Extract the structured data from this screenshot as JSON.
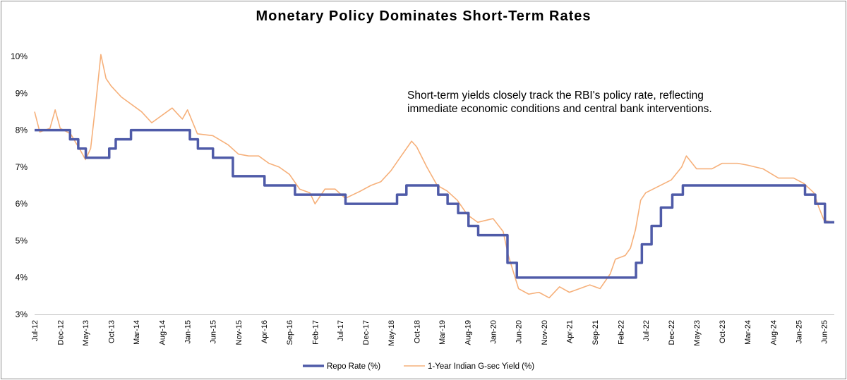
{
  "chart_data": {
    "type": "line",
    "title": "Monetary Policy Dominates Short-Term Rates",
    "xlabel": "",
    "ylabel": "",
    "annotation": "Short-term yields closely track the RBI's policy rate, reflecting immediate economic conditions and central bank interventions.",
    "ylim": [
      3,
      10
    ],
    "y_ticks": [
      "3%",
      "4%",
      "5%",
      "6%",
      "7%",
      "8%",
      "9%",
      "10%"
    ],
    "x_range": [
      "2012-07",
      "2025-08"
    ],
    "x_ticks": [
      "Jul-12",
      "Dec-12",
      "May-13",
      "Oct-13",
      "Mar-14",
      "Aug-14",
      "Jan-15",
      "Jun-15",
      "Nov-15",
      "Apr-16",
      "Sep-16",
      "Feb-17",
      "Jul-17",
      "Dec-17",
      "May-18",
      "Oct-18",
      "Mar-19",
      "Aug-19",
      "Jan-20",
      "Jun-20",
      "Nov-20",
      "Apr-21",
      "Sep-21",
      "Feb-22",
      "Jul-22",
      "Dec-22",
      "May-23",
      "Oct-23",
      "Mar-24",
      "Aug-24",
      "Jan-25",
      "Jun-25"
    ],
    "grid": false,
    "legend_position": "bottom",
    "series": [
      {
        "name": "Repo Rate (%)",
        "color": "#4f5ba8",
        "step": true,
        "points": [
          [
            "2012-07-01",
            8.0
          ],
          [
            "2013-01-29",
            7.75
          ],
          [
            "2013-03-19",
            7.5
          ],
          [
            "2013-05-03",
            7.25
          ],
          [
            "2013-09-20",
            7.5
          ],
          [
            "2013-10-29",
            7.75
          ],
          [
            "2014-01-28",
            8.0
          ],
          [
            "2015-01-15",
            7.75
          ],
          [
            "2015-03-04",
            7.5
          ],
          [
            "2015-06-02",
            7.25
          ],
          [
            "2015-09-29",
            6.75
          ],
          [
            "2016-04-05",
            6.5
          ],
          [
            "2016-10-04",
            6.25
          ],
          [
            "2017-08-02",
            6.0
          ],
          [
            "2018-06-06",
            6.25
          ],
          [
            "2018-08-01",
            6.5
          ],
          [
            "2019-02-07",
            6.25
          ],
          [
            "2019-04-04",
            6.0
          ],
          [
            "2019-06-06",
            5.75
          ],
          [
            "2019-08-07",
            5.4
          ],
          [
            "2019-10-04",
            5.15
          ],
          [
            "2020-03-27",
            4.4
          ],
          [
            "2020-05-22",
            4.0
          ],
          [
            "2022-05-04",
            4.4
          ],
          [
            "2022-06-08",
            4.9
          ],
          [
            "2022-08-05",
            5.4
          ],
          [
            "2022-09-30",
            5.9
          ],
          [
            "2022-12-07",
            6.25
          ],
          [
            "2023-02-08",
            6.5
          ],
          [
            "2025-02-07",
            6.25
          ],
          [
            "2025-04-09",
            6.0
          ],
          [
            "2025-06-06",
            5.5
          ],
          [
            "2025-08-01",
            5.5
          ]
        ]
      },
      {
        "name": "1-Year Indian G-sec Yield (%)",
        "color": "#f6b07a",
        "points": [
          [
            "2012-07-01",
            8.5
          ],
          [
            "2012-08-01",
            7.95
          ],
          [
            "2012-10-01",
            8.05
          ],
          [
            "2012-11-01",
            8.55
          ],
          [
            "2012-12-01",
            8.05
          ],
          [
            "2013-02-01",
            7.9
          ],
          [
            "2013-04-01",
            7.45
          ],
          [
            "2013-05-01",
            7.2
          ],
          [
            "2013-06-01",
            7.5
          ],
          [
            "2013-07-01",
            8.7
          ],
          [
            "2013-08-01",
            10.05
          ],
          [
            "2013-09-01",
            9.4
          ],
          [
            "2013-10-01",
            9.2
          ],
          [
            "2013-12-01",
            8.9
          ],
          [
            "2014-04-01",
            8.5
          ],
          [
            "2014-06-01",
            8.2
          ],
          [
            "2014-10-01",
            8.6
          ],
          [
            "2014-12-01",
            8.3
          ],
          [
            "2015-01-01",
            8.55
          ],
          [
            "2015-03-01",
            7.9
          ],
          [
            "2015-06-01",
            7.85
          ],
          [
            "2015-09-01",
            7.6
          ],
          [
            "2015-11-01",
            7.35
          ],
          [
            "2016-01-01",
            7.3
          ],
          [
            "2016-03-01",
            7.3
          ],
          [
            "2016-05-01",
            7.1
          ],
          [
            "2016-07-01",
            7.0
          ],
          [
            "2016-09-01",
            6.8
          ],
          [
            "2016-11-01",
            6.4
          ],
          [
            "2017-01-01",
            6.3
          ],
          [
            "2017-02-01",
            6.0
          ],
          [
            "2017-04-01",
            6.4
          ],
          [
            "2017-06-01",
            6.4
          ],
          [
            "2017-08-01",
            6.15
          ],
          [
            "2017-11-01",
            6.35
          ],
          [
            "2018-01-01",
            6.5
          ],
          [
            "2018-03-01",
            6.6
          ],
          [
            "2018-05-01",
            6.9
          ],
          [
            "2018-07-01",
            7.3
          ],
          [
            "2018-09-01",
            7.7
          ],
          [
            "2018-10-01",
            7.55
          ],
          [
            "2018-12-01",
            7.0
          ],
          [
            "2019-02-01",
            6.5
          ],
          [
            "2019-04-01",
            6.35
          ],
          [
            "2019-06-01",
            6.1
          ],
          [
            "2019-08-01",
            5.7
          ],
          [
            "2019-10-01",
            5.5
          ],
          [
            "2020-01-01",
            5.6
          ],
          [
            "2020-03-01",
            5.25
          ],
          [
            "2020-04-01",
            4.6
          ],
          [
            "2020-06-01",
            3.7
          ],
          [
            "2020-08-01",
            3.55
          ],
          [
            "2020-10-01",
            3.6
          ],
          [
            "2020-12-01",
            3.45
          ],
          [
            "2021-02-01",
            3.75
          ],
          [
            "2021-04-01",
            3.6
          ],
          [
            "2021-06-01",
            3.7
          ],
          [
            "2021-08-01",
            3.8
          ],
          [
            "2021-10-01",
            3.7
          ],
          [
            "2021-12-01",
            4.1
          ],
          [
            "2022-01-01",
            4.5
          ],
          [
            "2022-03-01",
            4.6
          ],
          [
            "2022-04-01",
            4.8
          ],
          [
            "2022-05-01",
            5.3
          ],
          [
            "2022-06-01",
            6.1
          ],
          [
            "2022-07-01",
            6.3
          ],
          [
            "2022-12-01",
            6.65
          ],
          [
            "2023-02-01",
            7.0
          ],
          [
            "2023-03-01",
            7.3
          ],
          [
            "2023-05-01",
            6.95
          ],
          [
            "2023-08-01",
            6.95
          ],
          [
            "2023-10-01",
            7.1
          ],
          [
            "2024-01-01",
            7.1
          ],
          [
            "2024-03-01",
            7.05
          ],
          [
            "2024-06-01",
            6.95
          ],
          [
            "2024-09-01",
            6.7
          ],
          [
            "2024-12-01",
            6.7
          ],
          [
            "2025-02-01",
            6.55
          ],
          [
            "2025-04-01",
            6.3
          ],
          [
            "2025-05-01",
            5.9
          ],
          [
            "2025-06-01",
            5.55
          ],
          [
            "2025-08-01",
            5.5
          ]
        ]
      }
    ]
  }
}
